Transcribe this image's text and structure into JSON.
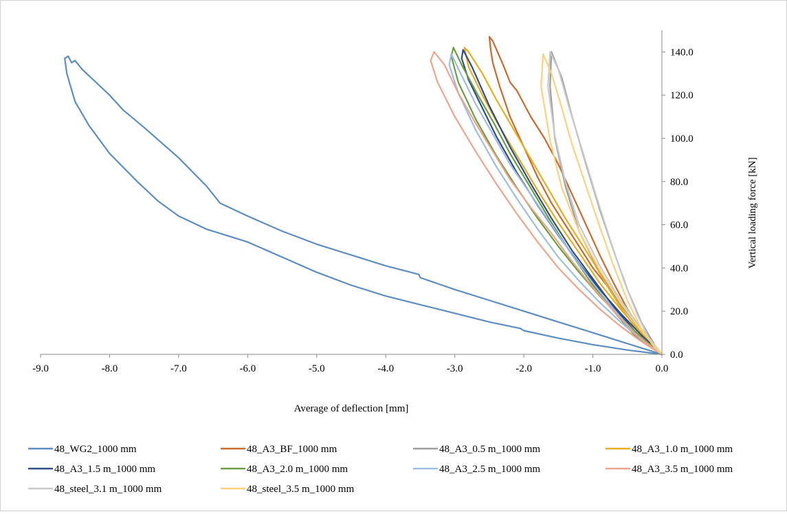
{
  "chart_data": {
    "type": "line",
    "xlabel": "Average  of  deflection  [mm]",
    "ylabel": "Vertical  loading  force  [kN]",
    "xlim": [
      -9.0,
      0.0
    ],
    "ylim": [
      0.0,
      150.0
    ],
    "x_ticks": [
      "-9.0",
      "-8.0",
      "-7.0",
      "-6.0",
      "-5.0",
      "-4.0",
      "-3.0",
      "-2.0",
      "-1.0",
      "0.0"
    ],
    "y_ticks": [
      "0.0",
      "20.0",
      "40.0",
      "60.0",
      "80.0",
      "100.0",
      "120.0",
      "140.0"
    ],
    "grid": false,
    "legend_position": "bottom",
    "series": [
      {
        "name": "48_WG2_1000 mm",
        "color": "#5B8DC0",
        "x": [
          0.0,
          -0.5,
          -1.0,
          -1.5,
          -2.0,
          -2.05,
          -2.5,
          -3.0,
          -3.5,
          -4.0,
          -4.5,
          -5.0,
          -5.5,
          -6.0,
          -6.3,
          -6.6,
          -7.0,
          -7.3,
          -7.6,
          -8.0,
          -8.3,
          -8.5,
          -8.62,
          -8.65,
          -8.6,
          -8.55,
          -8.5,
          -8.4,
          -8.3,
          -8.0,
          -7.8,
          -7.5,
          -7.0,
          -6.6,
          -6.4,
          -6.0,
          -5.5,
          -5.0,
          -4.5,
          -4.0,
          -3.52,
          -3.5,
          -3.0,
          -2.5,
          -2.0,
          -1.5,
          -1.0,
          -0.5,
          0.0
        ],
        "y": [
          0.0,
          2.0,
          4.5,
          7.5,
          11.0,
          12.0,
          15.0,
          19.0,
          23.0,
          27.0,
          32.0,
          38.0,
          45.0,
          52.0,
          55.0,
          58.0,
          64.0,
          71.0,
          80.0,
          93.0,
          106.0,
          117.0,
          130.0,
          137.0,
          138.0,
          135.0,
          136.0,
          132.0,
          129.0,
          120.0,
          113.0,
          105.0,
          91.0,
          78.0,
          70.0,
          64.0,
          57.0,
          51.0,
          46.0,
          41.0,
          37.0,
          35.5,
          30.0,
          25.0,
          20.0,
          15.0,
          10.0,
          5.0,
          0.0
        ]
      },
      {
        "name": "48_A3_BF_1000 mm",
        "color": "#C96A2C",
        "x": [
          0.0,
          -0.2,
          -0.4,
          -0.6,
          -0.8,
          -1.0,
          -1.2,
          -1.4,
          -1.6,
          -1.8,
          -2.0,
          -2.2,
          -2.35,
          -2.45,
          -2.48,
          -2.5,
          -2.45,
          -2.3,
          -2.2,
          -2.1,
          -1.9,
          -1.7,
          -1.5,
          -1.3,
          -1.1,
          -0.9,
          -0.7,
          -0.5,
          -0.3,
          -0.1,
          0.0
        ],
        "y": [
          0.0,
          8.0,
          16.0,
          23.0,
          32.0,
          40.0,
          50.0,
          60.0,
          70.0,
          82.0,
          96.0,
          110.0,
          124.0,
          135.0,
          141.0,
          147.0,
          145.0,
          134.0,
          126.0,
          122.0,
          110.0,
          100.0,
          88.0,
          74.0,
          60.0,
          46.0,
          33.0,
          21.0,
          11.0,
          3.0,
          0.0
        ]
      },
      {
        "name": "48_A3_0.5 m_1000 mm",
        "color": "#9E9E9E",
        "x": [
          0.0,
          -0.3,
          -0.6,
          -0.9,
          -1.2,
          -1.4,
          -1.55,
          -1.62,
          -1.6,
          -1.45,
          -1.3,
          -1.1,
          -0.9,
          -0.7,
          -0.5,
          -0.3,
          -0.1,
          0.0
        ],
        "y": [
          0.0,
          11.0,
          23.0,
          38.0,
          57.0,
          78.0,
          100.0,
          124.0,
          140.0,
          128.0,
          110.0,
          88.0,
          67.0,
          48.0,
          30.0,
          15.0,
          4.0,
          0.0
        ]
      },
      {
        "name": "48_A3_1.0 m_1000 mm",
        "color": "#E6AE1C",
        "x": [
          0.0,
          -0.3,
          -0.6,
          -0.9,
          -1.2,
          -1.5,
          -1.8,
          -2.1,
          -2.4,
          -2.6,
          -2.8,
          -2.86,
          -2.8,
          -2.6,
          -2.4,
          -2.2,
          -2.0,
          -1.8,
          -1.6,
          -1.4,
          -1.2,
          -1.0,
          -0.8,
          -0.6,
          -0.4,
          -0.2,
          0.0
        ],
        "y": [
          0.0,
          10.0,
          21.0,
          33.0,
          47.0,
          61.0,
          76.0,
          92.0,
          108.0,
          120.0,
          133.0,
          142.0,
          140.0,
          130.0,
          118.0,
          107.0,
          96.0,
          85.0,
          74.0,
          63.0,
          53.0,
          43.0,
          32.0,
          22.0,
          13.0,
          5.0,
          0.0
        ]
      },
      {
        "name": "48_A3_1.5 m_1000 mm",
        "color": "#2F4D8A",
        "x": [
          0.0,
          -0.3,
          -0.6,
          -0.9,
          -1.2,
          -1.5,
          -1.8,
          -2.1,
          -2.4,
          -2.6,
          -2.8,
          -2.9,
          -2.88,
          -2.75,
          -2.5,
          -2.2,
          -1.9,
          -1.6,
          -1.3,
          -1.0,
          -0.7,
          -0.4,
          -0.1,
          0.0
        ],
        "y": [
          0.0,
          9.0,
          19.0,
          30.0,
          42.0,
          55.0,
          69.0,
          84.0,
          101.0,
          114.0,
          127.0,
          137.0,
          141.0,
          133.0,
          115.0,
          96.0,
          79.0,
          63.0,
          48.0,
          35.0,
          22.0,
          11.0,
          2.0,
          0.0
        ]
      },
      {
        "name": "48_A3_2.0 m_1000 mm",
        "color": "#6A9E3F",
        "x": [
          0.0,
          -0.3,
          -0.6,
          -0.9,
          -1.2,
          -1.5,
          -1.8,
          -2.1,
          -2.4,
          -2.7,
          -2.95,
          -3.05,
          -3.02,
          -2.9,
          -2.7,
          -2.45,
          -2.2,
          -1.9,
          -1.6,
          -1.3,
          -1.0,
          -0.7,
          -0.4,
          -0.1,
          0.0
        ],
        "y": [
          0.0,
          8.0,
          17.0,
          27.0,
          38.0,
          50.0,
          63.0,
          77.0,
          92.0,
          109.0,
          126.0,
          138.0,
          142.0,
          134.0,
          122.0,
          108.0,
          93.0,
          77.0,
          61.0,
          46.0,
          32.0,
          20.0,
          9.0,
          2.0,
          0.0
        ]
      },
      {
        "name": "48_A3_2.5 m_1000 mm",
        "color": "#9DBDE2",
        "x": [
          0.0,
          -0.3,
          -0.6,
          -0.9,
          -1.2,
          -1.5,
          -1.8,
          -2.1,
          -2.4,
          -2.7,
          -2.95,
          -3.08,
          -3.05,
          -2.9,
          -2.7,
          -2.45,
          -2.2,
          -1.9,
          -1.6,
          -1.3,
          -1.0,
          -0.7,
          -0.4,
          -0.1,
          0.0
        ],
        "y": [
          0.0,
          7.0,
          15.0,
          24.0,
          34.0,
          45.0,
          58.0,
          72.0,
          87.0,
          104.0,
          121.0,
          134.0,
          139.0,
          129.0,
          116.0,
          102.0,
          88.0,
          74.0,
          60.0,
          46.0,
          33.0,
          21.0,
          10.0,
          2.0,
          0.0
        ]
      },
      {
        "name": "48_A3_3.5 m_1000 mm",
        "color": "#ECA58C",
        "x": [
          0.0,
          -0.3,
          -0.6,
          -0.9,
          -1.2,
          -1.5,
          -1.8,
          -2.1,
          -2.4,
          -2.7,
          -3.0,
          -3.25,
          -3.35,
          -3.3,
          -3.15,
          -2.95,
          -2.7,
          -2.45,
          -2.2,
          -1.9,
          -1.6,
          -1.3,
          -1.0,
          -0.7,
          -0.4,
          -0.1,
          0.0
        ],
        "y": [
          0.0,
          6.0,
          13.0,
          21.0,
          30.0,
          40.0,
          52.0,
          65.0,
          79.0,
          94.0,
          110.0,
          126.0,
          136.0,
          140.0,
          134.0,
          121.0,
          107.0,
          94.0,
          81.0,
          68.0,
          56.0,
          43.0,
          31.0,
          20.0,
          10.0,
          2.0,
          0.0
        ]
      },
      {
        "name": "48_steel_3.1 m_1000 mm",
        "color": "#C8C8C8",
        "x": [
          0.0,
          -0.3,
          -0.6,
          -0.9,
          -1.2,
          -1.4,
          -1.55,
          -1.65,
          -1.62,
          -1.5,
          -1.35,
          -1.15,
          -0.95,
          -0.75,
          -0.55,
          -0.35,
          -0.15,
          0.0
        ],
        "y": [
          0.0,
          12.0,
          25.0,
          41.0,
          60.0,
          80.0,
          101.0,
          124.0,
          140.0,
          132.0,
          115.0,
          94.0,
          73.0,
          53.0,
          34.0,
          18.0,
          5.0,
          0.0
        ]
      },
      {
        "name": "48_steel_3.5 m_1000 mm",
        "color": "#FAD27F",
        "x": [
          0.0,
          -0.3,
          -0.6,
          -0.9,
          -1.2,
          -1.45,
          -1.62,
          -1.75,
          -1.72,
          -1.6,
          -1.45,
          -1.3,
          -1.1,
          -0.9,
          -0.7,
          -0.5,
          -0.3,
          -0.1,
          0.0
        ],
        "y": [
          0.0,
          11.0,
          24.0,
          39.0,
          57.0,
          77.0,
          99.0,
          124.0,
          139.0,
          130.0,
          114.0,
          97.0,
          78.0,
          59.0,
          41.0,
          25.0,
          12.0,
          3.0,
          0.0
        ]
      }
    ]
  }
}
